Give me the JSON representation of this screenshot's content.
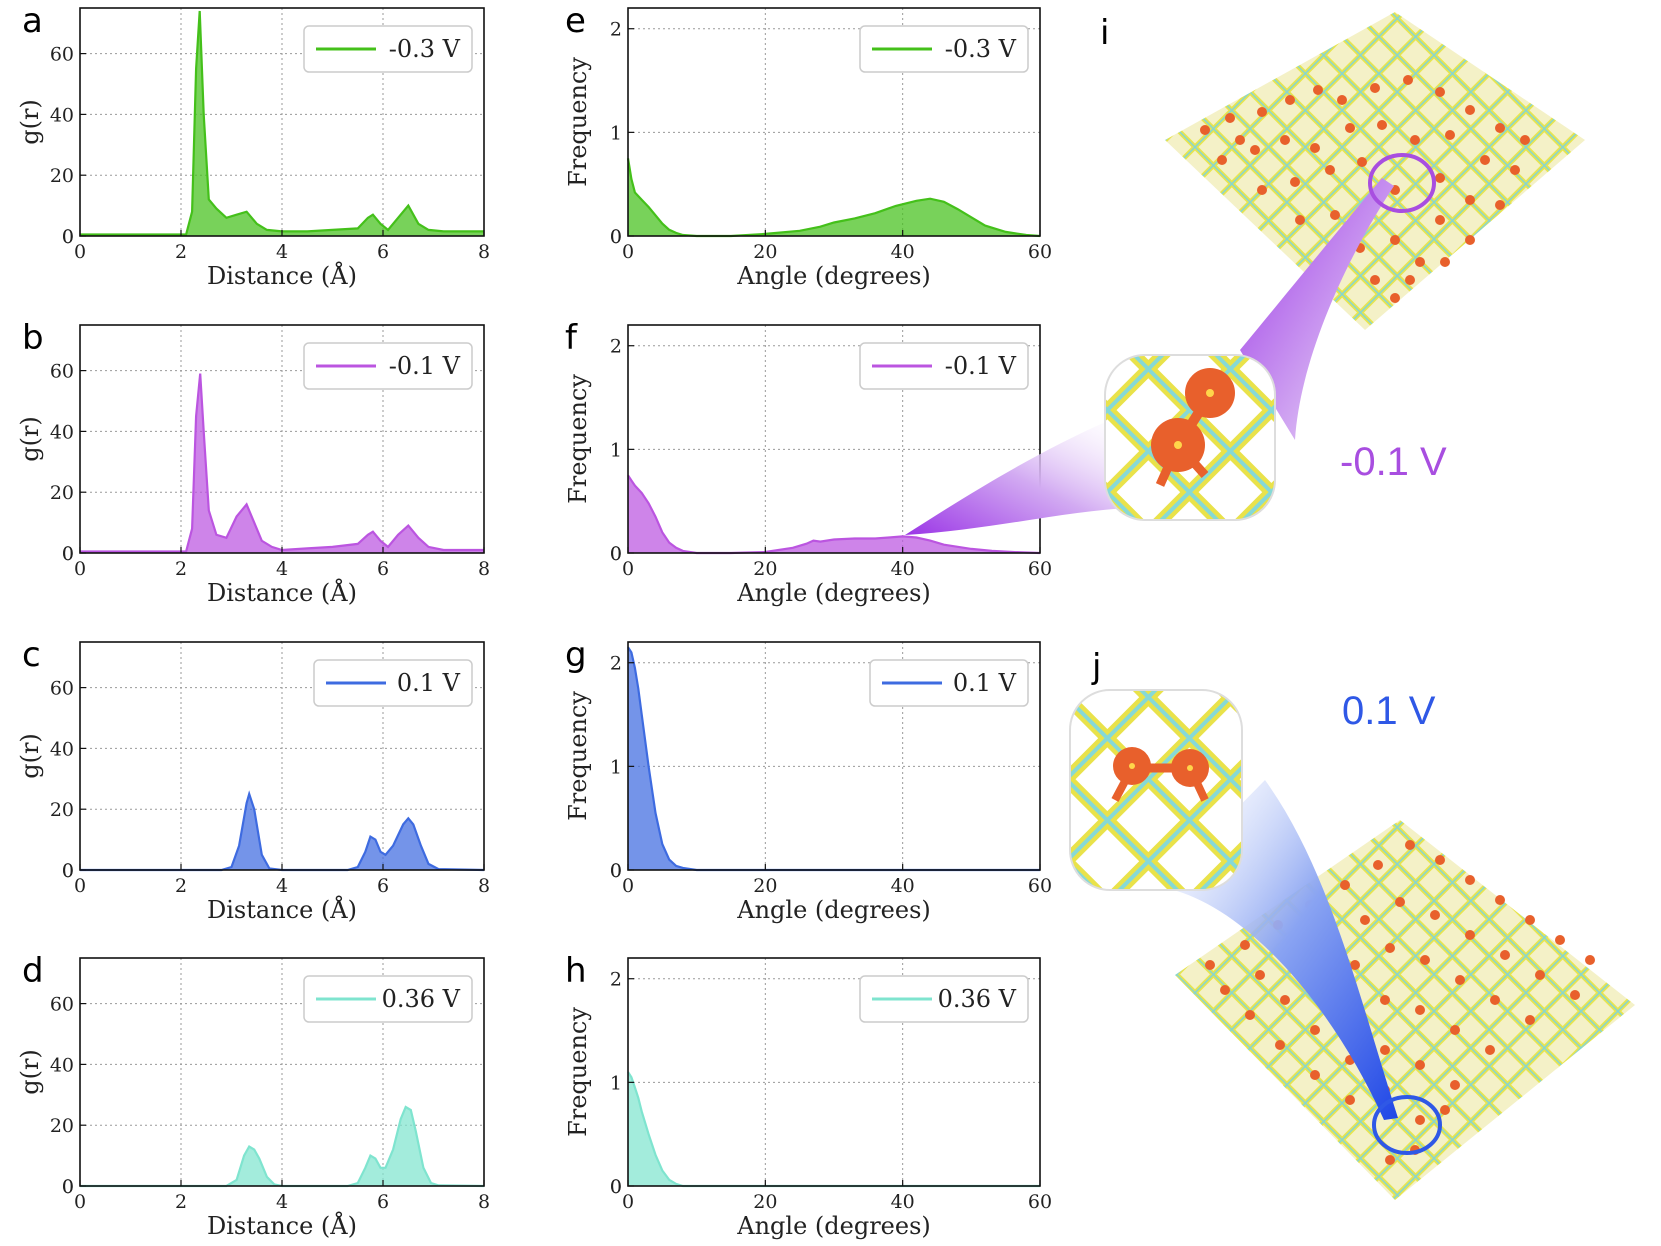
{
  "figure": {
    "panel_letters": [
      "a",
      "b",
      "c",
      "d",
      "e",
      "f",
      "g",
      "h",
      "i",
      "j"
    ],
    "annotations": [
      {
        "panel": "i",
        "text": "-0.1 V",
        "color": "#a84ee0"
      },
      {
        "panel": "j",
        "text": "0.1 V",
        "color": "#2f58e6"
      }
    ],
    "atom_colors": {
      "highlight": "#e8602c",
      "lattice_a": "#e7e344",
      "lattice_b": "#7fd3d0"
    }
  },
  "chart_data": [
    {
      "panel": "a",
      "type": "area",
      "legend": "-0.3 V",
      "color": "#44c01a",
      "xlabel": "Distance (Å)",
      "ylabel": "g(r)",
      "xlim": [
        0,
        8
      ],
      "ylim": [
        0,
        75
      ],
      "xticks": [
        0,
        2,
        4,
        6,
        8
      ],
      "yticks": [
        0,
        20,
        40,
        60
      ],
      "x": [
        0,
        2.1,
        2.22,
        2.3,
        2.37,
        2.45,
        2.55,
        2.7,
        2.9,
        3.1,
        3.3,
        3.5,
        3.7,
        4.0,
        4.5,
        5.0,
        5.5,
        5.7,
        5.8,
        5.95,
        6.1,
        6.3,
        6.5,
        6.7,
        6.9,
        7.2,
        7.6,
        8.0
      ],
      "y": [
        0.5,
        0.5,
        8,
        55,
        74,
        40,
        12,
        9,
        6,
        7,
        8,
        4,
        2,
        1.5,
        1.5,
        2,
        2.5,
        6,
        7,
        4,
        2,
        6,
        10,
        4,
        2,
        1.5,
        1.5,
        1.5
      ],
      "grid": true,
      "legend_position": "top-right"
    },
    {
      "panel": "b",
      "type": "area",
      "legend": "-0.1 V",
      "color": "#bb55e0",
      "xlabel": "Distance (Å)",
      "ylabel": "g(r)",
      "xlim": [
        0,
        8
      ],
      "ylim": [
        0,
        75
      ],
      "xticks": [
        0,
        2,
        4,
        6,
        8
      ],
      "yticks": [
        0,
        20,
        40,
        60
      ],
      "x": [
        0,
        2.1,
        2.22,
        2.3,
        2.38,
        2.45,
        2.55,
        2.7,
        2.9,
        3.1,
        3.3,
        3.45,
        3.6,
        3.8,
        4.0,
        4.5,
        5.0,
        5.5,
        5.7,
        5.8,
        5.95,
        6.1,
        6.3,
        6.5,
        6.7,
        6.9,
        7.2,
        7.6,
        8.0
      ],
      "y": [
        0.5,
        0.5,
        8,
        45,
        59,
        40,
        14,
        6,
        5,
        12,
        16,
        10,
        4,
        2,
        1,
        1.5,
        2,
        3,
        6,
        7,
        4,
        2,
        6,
        9,
        5,
        2,
        1,
        1,
        1
      ],
      "grid": true,
      "legend_position": "top-right"
    },
    {
      "panel": "c",
      "type": "area",
      "legend": "0.1 V",
      "color": "#3e6be0",
      "xlabel": "Distance (Å)",
      "ylabel": "g(r)",
      "xlim": [
        0,
        8
      ],
      "ylim": [
        0,
        75
      ],
      "xticks": [
        0,
        2,
        4,
        6,
        8
      ],
      "yticks": [
        0,
        20,
        40,
        60
      ],
      "x": [
        0,
        2.8,
        3.0,
        3.15,
        3.3,
        3.35,
        3.45,
        3.6,
        3.75,
        4.0,
        5.3,
        5.5,
        5.65,
        5.75,
        5.85,
        5.95,
        6.05,
        6.2,
        6.4,
        6.5,
        6.6,
        6.75,
        6.9,
        7.1,
        8.0
      ],
      "y": [
        0,
        0,
        1,
        8,
        22,
        25,
        20,
        5,
        0.5,
        0,
        0,
        1,
        6,
        11,
        10,
        6,
        5,
        8,
        15,
        17,
        15,
        8,
        2,
        0.3,
        0
      ],
      "grid": true,
      "legend_position": "top-right"
    },
    {
      "panel": "d",
      "type": "area",
      "legend": "0.36 V",
      "color": "#7fe4cf",
      "xlabel": "Distance (Å)",
      "ylabel": "g(r)",
      "xlim": [
        0,
        8
      ],
      "ylim": [
        0,
        75
      ],
      "xticks": [
        0,
        2,
        4,
        6,
        8
      ],
      "yticks": [
        0,
        20,
        40,
        60
      ],
      "x": [
        0,
        2.9,
        3.1,
        3.25,
        3.35,
        3.45,
        3.55,
        3.7,
        3.85,
        4.0,
        5.3,
        5.5,
        5.65,
        5.75,
        5.85,
        5.95,
        6.05,
        6.2,
        6.35,
        6.45,
        6.55,
        6.65,
        6.8,
        6.95,
        7.1,
        8.0
      ],
      "y": [
        0,
        0,
        2,
        10,
        13,
        12,
        9,
        3,
        0.5,
        0,
        0,
        1,
        6,
        10,
        9,
        6,
        6,
        12,
        22,
        26,
        25,
        18,
        6,
        1,
        0.2,
        0
      ],
      "grid": true,
      "legend_position": "top-right"
    },
    {
      "panel": "e",
      "type": "area",
      "legend": "-0.3 V",
      "color": "#44c01a",
      "xlabel": "Angle (degrees)",
      "ylabel": "Frequency",
      "xlim": [
        0,
        60
      ],
      "ylim": [
        0,
        2.2
      ],
      "xticks": [
        0,
        20,
        40,
        60
      ],
      "yticks": [
        0,
        1,
        2
      ],
      "x": [
        0,
        0.5,
        1,
        2,
        3,
        4,
        5,
        6,
        7,
        8,
        10,
        15,
        20,
        25,
        28,
        30,
        33,
        36,
        39,
        42,
        44,
        46,
        48,
        50,
        52,
        55,
        58,
        60
      ],
      "y": [
        0.75,
        0.55,
        0.42,
        0.35,
        0.28,
        0.2,
        0.12,
        0.06,
        0.03,
        0.01,
        0,
        0,
        0.02,
        0.05,
        0.09,
        0.13,
        0.17,
        0.22,
        0.29,
        0.34,
        0.36,
        0.33,
        0.26,
        0.18,
        0.1,
        0.04,
        0.01,
        0
      ],
      "grid": true,
      "legend_position": "top-right"
    },
    {
      "panel": "f",
      "type": "area",
      "legend": "-0.1 V",
      "color": "#bb55e0",
      "xlabel": "Angle (degrees)",
      "ylabel": "Frequency",
      "xlim": [
        0,
        60
      ],
      "ylim": [
        0,
        2.2
      ],
      "xticks": [
        0,
        20,
        40,
        60
      ],
      "yticks": [
        0,
        1,
        2
      ],
      "x": [
        0,
        0.5,
        1,
        2,
        3,
        4,
        5,
        6,
        7,
        8,
        10,
        15,
        20,
        24,
        26,
        27,
        28,
        30,
        33,
        36,
        38,
        40,
        42,
        44,
        46,
        48,
        50,
        53,
        56,
        60
      ],
      "y": [
        0.75,
        0.7,
        0.65,
        0.58,
        0.48,
        0.35,
        0.2,
        0.1,
        0.05,
        0.02,
        0,
        0,
        0.01,
        0.05,
        0.09,
        0.12,
        0.11,
        0.13,
        0.14,
        0.14,
        0.15,
        0.16,
        0.15,
        0.12,
        0.08,
        0.06,
        0.04,
        0.02,
        0.01,
        0
      ],
      "grid": true,
      "legend_position": "top-right"
    },
    {
      "panel": "g",
      "type": "area",
      "legend": "0.1 V",
      "color": "#3e6be0",
      "xlabel": "Angle (degrees)",
      "ylabel": "Frequency",
      "xlim": [
        0,
        60
      ],
      "ylim": [
        0,
        2.2
      ],
      "xticks": [
        0,
        20,
        40,
        60
      ],
      "yticks": [
        0,
        1,
        2
      ],
      "x": [
        0,
        0.5,
        1,
        1.5,
        2,
        3,
        4,
        5,
        6,
        7,
        8,
        9,
        10,
        15,
        60
      ],
      "y": [
        2.15,
        2.1,
        1.95,
        1.75,
        1.5,
        1.0,
        0.55,
        0.25,
        0.1,
        0.04,
        0.02,
        0.01,
        0,
        0,
        0
      ],
      "grid": true,
      "legend_position": "top-right"
    },
    {
      "panel": "h",
      "type": "area",
      "legend": "0.36 V",
      "color": "#7fe4cf",
      "xlabel": "Angle (degrees)",
      "ylabel": "Frequency",
      "xlim": [
        0,
        60
      ],
      "ylim": [
        0,
        2.2
      ],
      "xticks": [
        0,
        20,
        40,
        60
      ],
      "yticks": [
        0,
        1,
        2
      ],
      "x": [
        0,
        0.5,
        1,
        1.5,
        2,
        3,
        4,
        5,
        6,
        7,
        8,
        10,
        60
      ],
      "y": [
        1.1,
        1.05,
        0.95,
        0.85,
        0.72,
        0.5,
        0.3,
        0.15,
        0.06,
        0.02,
        0,
        0,
        0
      ],
      "grid": true,
      "legend_position": "top-right"
    }
  ]
}
